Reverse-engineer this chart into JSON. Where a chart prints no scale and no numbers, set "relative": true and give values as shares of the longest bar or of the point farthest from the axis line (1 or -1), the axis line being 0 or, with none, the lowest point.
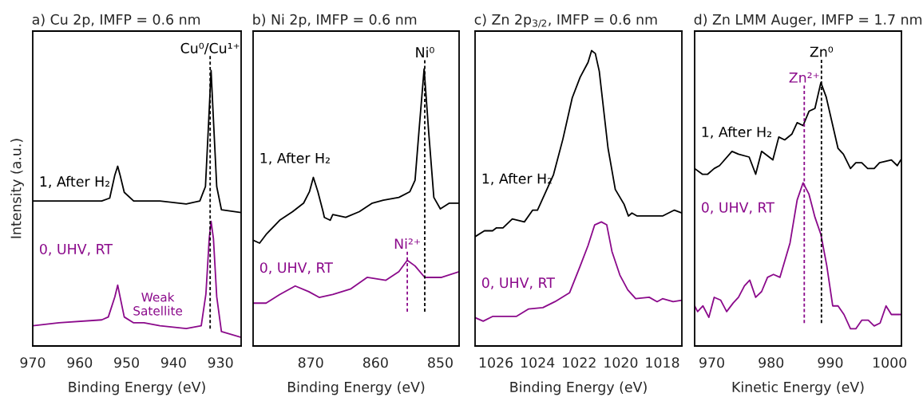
{
  "chart_data": [
    {
      "type": "line",
      "title": "a) Cu 2p, IMFP = 0.6 nm",
      "xlabel": "Binding Energy (eV)",
      "ylabel": "Intensity (a.u.)",
      "relative": true,
      "xlim": [
        970,
        925.6
      ],
      "xticks": [
        970,
        960,
        950,
        940,
        930
      ],
      "series": [
        {
          "name": "1, After H₂",
          "color": "#000000",
          "x": [
            970,
            962.7,
            955.3,
            953.6,
            952.5,
            951.9,
            951.4,
            950.5,
            948.5,
            942.9,
            937.3,
            934.4,
            933.2,
            932.5,
            932.0,
            931.5,
            930.8,
            929.8,
            925.6
          ],
          "values": [
            0.5,
            0.5,
            0.5,
            0.51,
            0.59,
            0.62,
            0.59,
            0.53,
            0.5,
            0.5,
            0.49,
            0.5,
            0.55,
            0.78,
            0.95,
            0.78,
            0.55,
            0.47,
            0.46
          ]
        },
        {
          "name": "0, UHV, RT",
          "color": "#8b0a8b",
          "x": [
            970,
            964.4,
            955.3,
            953.9,
            952.5,
            951.9,
            951.4,
            950.5,
            948.5,
            946.3,
            942.9,
            937.3,
            934.1,
            933.1,
            932.4,
            932.0,
            931.5,
            930.8,
            929.8,
            925.6
          ],
          "values": [
            0.07,
            0.08,
            0.09,
            0.1,
            0.17,
            0.21,
            0.17,
            0.1,
            0.08,
            0.08,
            0.07,
            0.06,
            0.07,
            0.18,
            0.37,
            0.43,
            0.37,
            0.17,
            0.05,
            0.03
          ]
        },
        {
          "name": "Cu⁰/Cu¹⁺",
          "color": "#000000",
          "line_style": "dashed",
          "x": [
            932.2,
            932.2
          ],
          "values": [
            0.06,
            1.0
          ]
        }
      ],
      "annotations": [
        "Weak\nSatellite"
      ]
    },
    {
      "type": "line",
      "title": "b) Ni 2p, IMFP = 0.6 nm",
      "xlabel": "Binding Energy (eV)",
      "relative": true,
      "xlim": [
        878.9,
        847.1
      ],
      "xticks": [
        870,
        860,
        850
      ],
      "series": [
        {
          "name": "1, After H₂",
          "color": "#000000",
          "x": [
            878.9,
            877.9,
            876.9,
            874.8,
            872.8,
            871.1,
            870.2,
            869.6,
            868.9,
            868.1,
            867.9,
            867.0,
            866.6,
            864.6,
            862.5,
            860.5,
            858.8,
            856.4,
            854.7,
            853.9,
            853.3,
            852.5,
            851.8,
            851.0,
            850.0,
            848.6,
            847.5,
            847.1
          ],
          "values": [
            0.37,
            0.36,
            0.39,
            0.44,
            0.47,
            0.5,
            0.54,
            0.59,
            0.54,
            0.47,
            0.45,
            0.44,
            0.46,
            0.45,
            0.47,
            0.5,
            0.51,
            0.52,
            0.54,
            0.58,
            0.75,
            0.97,
            0.75,
            0.52,
            0.48,
            0.5,
            0.5,
            0.5
          ]
        },
        {
          "name": "0, UHV, RT",
          "color": "#8b0a8b",
          "x": [
            878.9,
            876.9,
            874.8,
            872.4,
            870.3,
            868.7,
            866.6,
            863.8,
            861.3,
            858.4,
            856.4,
            855.1,
            853.9,
            852.4,
            849.8,
            847.1
          ],
          "values": [
            0.15,
            0.15,
            0.18,
            0.21,
            0.19,
            0.17,
            0.18,
            0.2,
            0.24,
            0.23,
            0.26,
            0.3,
            0.28,
            0.24,
            0.24,
            0.26
          ]
        },
        {
          "name": "Ni⁰",
          "color": "#000000",
          "line_style": "dashed",
          "x": [
            852.4,
            852.4
          ],
          "values": [
            0.12,
            1.0
          ]
        },
        {
          "name": "Ni²⁺",
          "color": "#8b0a8b",
          "line_style": "dashed",
          "x": [
            855.1,
            855.1
          ],
          "values": [
            0.12,
            0.33
          ]
        }
      ]
    },
    {
      "type": "line",
      "title": "c) Zn 2p$_{3/2}$, IMFP = 0.6 nm",
      "xlabel": "Binding Energy (eV)",
      "relative": true,
      "xlim": [
        1027,
        1017.06
      ],
      "xticks": [
        1026,
        1024,
        1022,
        1020,
        1018
      ],
      "series": [
        {
          "name": "1, After H₂",
          "color": "#000000",
          "x": [
            1027.0,
            1026.55,
            1026.16,
            1025.97,
            1025.66,
            1025.21,
            1024.63,
            1024.23,
            1024.0,
            1023.74,
            1023.23,
            1022.78,
            1022.33,
            1021.95,
            1021.57,
            1021.4,
            1021.22,
            1021.03,
            1020.61,
            1020.26,
            1019.84,
            1019.63,
            1019.46,
            1019.21,
            1018.63,
            1017.99,
            1017.42,
            1017.06
          ],
          "values": [
            0.37,
            0.39,
            0.39,
            0.4,
            0.4,
            0.43,
            0.42,
            0.46,
            0.46,
            0.5,
            0.58,
            0.7,
            0.84,
            0.91,
            0.96,
            1.0,
            0.99,
            0.93,
            0.67,
            0.53,
            0.48,
            0.44,
            0.45,
            0.44,
            0.44,
            0.44,
            0.46,
            0.45
          ]
        },
        {
          "name": "0, UHV, RT",
          "color": "#8b0a8b",
          "x": [
            1027.0,
            1026.61,
            1026.16,
            1025.02,
            1024.44,
            1023.74,
            1023.16,
            1022.46,
            1021.95,
            1021.57,
            1021.25,
            1020.93,
            1020.67,
            1020.42,
            1020.04,
            1019.66,
            1019.28,
            1018.63,
            1018.25,
            1017.99,
            1017.48,
            1017.06
          ],
          "values": [
            0.096,
            0.084,
            0.1,
            0.1,
            0.125,
            0.13,
            0.15,
            0.18,
            0.27,
            0.34,
            0.41,
            0.42,
            0.41,
            0.32,
            0.24,
            0.19,
            0.16,
            0.165,
            0.15,
            0.16,
            0.15,
            0.155
          ]
        }
      ]
    },
    {
      "type": "line",
      "title": "d) Zn LMM Auger, IMFP = 1.7 nm",
      "xlabel": "Kinetic Energy (eV)",
      "relative": true,
      "xlim": [
        967.1,
        1002
      ],
      "xticks": [
        970,
        980,
        990,
        1000
      ],
      "series": [
        {
          "name": "1, After H₂",
          "color": "#000000",
          "x": [
            967.1,
            968.4,
            969.3,
            970.4,
            971.3,
            973.4,
            974.5,
            976.3,
            977.4,
            978.4,
            980.3,
            981.3,
            982.3,
            983.5,
            984.4,
            985.4,
            986.4,
            987.4,
            988.4,
            989.3,
            991.3,
            992.2,
            993.4,
            994.3,
            995.3,
            996.3,
            997.4,
            998.3,
            1000.3,
            1001.3,
            1001.9
          ],
          "values": [
            0.62,
            0.6,
            0.6,
            0.62,
            0.63,
            0.68,
            0.67,
            0.66,
            0.6,
            0.68,
            0.65,
            0.73,
            0.72,
            0.74,
            0.78,
            0.77,
            0.82,
            0.83,
            0.92,
            0.87,
            0.69,
            0.67,
            0.62,
            0.64,
            0.64,
            0.62,
            0.62,
            0.64,
            0.65,
            0.63,
            0.65
          ]
        },
        {
          "name": "0, UHV, RT",
          "color": "#8b0a8b",
          "x": [
            967.1,
            967.6,
            968.5,
            969.5,
            970.4,
            971.5,
            972.5,
            973.6,
            974.5,
            975.5,
            976.4,
            977.4,
            978.4,
            979.4,
            980.4,
            981.5,
            983.2,
            984.4,
            985.4,
            986.4,
            987.4,
            988.4,
            989.4,
            990.4,
            991.3,
            992.3,
            993.4,
            994.3,
            995.3,
            996.4,
            997.4,
            998.4,
            999.4,
            1000.3,
            1001.9
          ],
          "values": [
            0.14,
            0.12,
            0.14,
            0.1,
            0.17,
            0.16,
            0.12,
            0.15,
            0.17,
            0.21,
            0.23,
            0.17,
            0.19,
            0.24,
            0.25,
            0.24,
            0.36,
            0.51,
            0.57,
            0.53,
            0.45,
            0.39,
            0.28,
            0.14,
            0.14,
            0.11,
            0.06,
            0.06,
            0.09,
            0.09,
            0.07,
            0.08,
            0.14,
            0.11,
            0.11
          ]
        },
        {
          "name": "Zn⁰",
          "color": "#000000",
          "line_style": "dashed",
          "x": [
            988.5,
            988.5
          ],
          "values": [
            0.08,
            1.0
          ]
        },
        {
          "name": "Zn²⁺",
          "color": "#8b0a8b",
          "line_style": "dashed",
          "x": [
            985.6,
            985.6
          ],
          "values": [
            0.08,
            0.91
          ]
        }
      ]
    }
  ]
}
